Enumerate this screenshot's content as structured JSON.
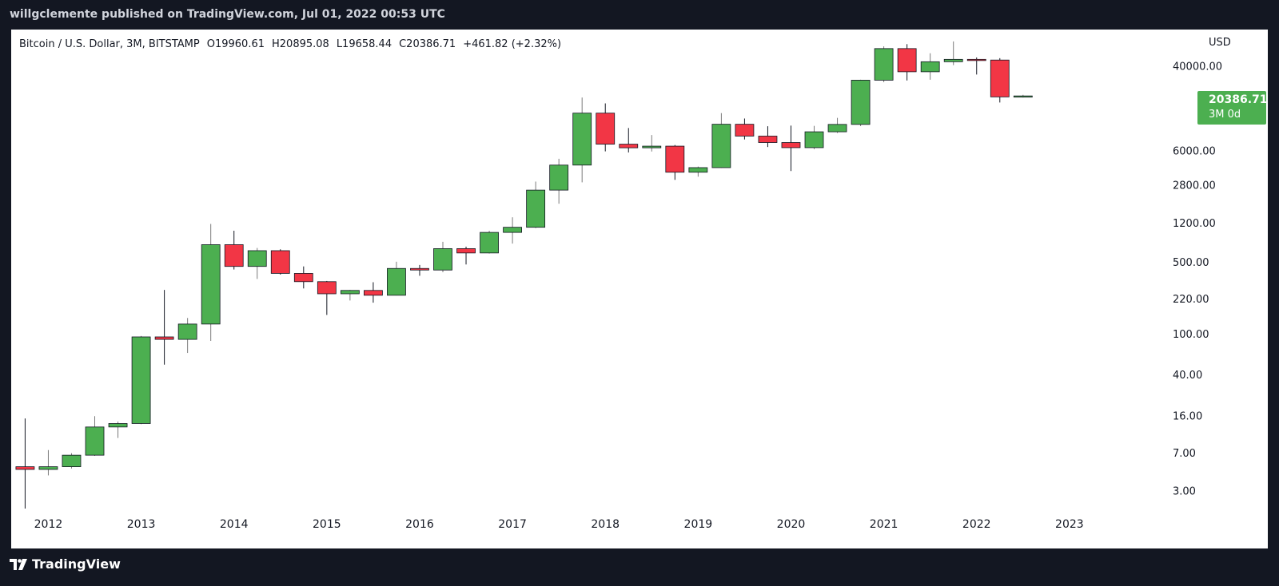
{
  "header": {
    "published_by": "willgclemente published on TradingView.com, Jul 01, 2022 00:53 UTC"
  },
  "legend": {
    "symbol": "Bitcoin / U.S. Dollar, 3M, BITSTAMP",
    "open": "O19960.61",
    "high": "H20895.08",
    "low": "L19658.44",
    "close": "C20386.71",
    "change": "+461.82 (+2.32%)"
  },
  "price_axis": {
    "currency": "USD",
    "current_price": "20386.71",
    "countdown": "3M 0d"
  },
  "footer": {
    "brand": "TradingView"
  },
  "colors": {
    "up": "#4caf50",
    "down": "#f23645",
    "background": "#131722",
    "chart_bg": "#ffffff",
    "text": "#131722",
    "header_text": "#d1d4dc"
  },
  "chart_data": {
    "type": "candlestick",
    "y_scale": "log",
    "ylim": [
      2,
      90000
    ],
    "y_ticks": [
      3,
      7,
      16,
      40,
      100,
      220,
      500,
      1200,
      2800,
      6000,
      40000
    ],
    "y_tick_labels": [
      "3.00",
      "7.00",
      "16.00",
      "40.00",
      "100.00",
      "220.00",
      "500.00",
      "1200.00",
      "2800.00",
      "6000.00",
      "40000.00"
    ],
    "x_ticks": [
      "2012",
      "2013",
      "2014",
      "2015",
      "2016",
      "2017",
      "2018",
      "2019",
      "2020",
      "2021",
      "2022",
      "2023"
    ],
    "x_tick_values": [
      2012.0,
      2013.0,
      2014.0,
      2015.0,
      2016.0,
      2017.0,
      2018.0,
      2019.0,
      2020.0,
      2021.0,
      2022.0,
      2023.0
    ],
    "xlim": [
      2011.6,
      2024.0
    ],
    "candles": [
      {
        "t": 2011.75,
        "o": 5.1,
        "h": 15.0,
        "l": 2.0,
        "c": 4.8
      },
      {
        "t": 2012.0,
        "o": 4.8,
        "h": 7.4,
        "l": 4.2,
        "c": 5.1
      },
      {
        "t": 2012.25,
        "o": 5.1,
        "h": 6.9,
        "l": 4.9,
        "c": 6.6
      },
      {
        "t": 2012.5,
        "o": 6.6,
        "h": 15.8,
        "l": 6.5,
        "c": 12.4
      },
      {
        "t": 2012.75,
        "o": 12.4,
        "h": 14.0,
        "l": 9.7,
        "c": 13.4
      },
      {
        "t": 2013.0,
        "o": 13.4,
        "h": 95.0,
        "l": 13.2,
        "c": 93.0
      },
      {
        "t": 2013.25,
        "o": 93.0,
        "h": 266.0,
        "l": 50.0,
        "c": 88.0
      },
      {
        "t": 2013.5,
        "o": 88.0,
        "h": 142.0,
        "l": 65.0,
        "c": 124.0
      },
      {
        "t": 2013.75,
        "o": 124.0,
        "h": 1163.0,
        "l": 85.0,
        "c": 732.0
      },
      {
        "t": 2014.0,
        "o": 732.0,
        "h": 1000.0,
        "l": 420.0,
        "c": 450.0
      },
      {
        "t": 2014.25,
        "o": 450.0,
        "h": 680.0,
        "l": 340.0,
        "c": 640.0
      },
      {
        "t": 2014.5,
        "o": 640.0,
        "h": 660.0,
        "l": 375.0,
        "c": 385.0
      },
      {
        "t": 2014.75,
        "o": 385.0,
        "h": 450.0,
        "l": 275.0,
        "c": 320.0
      },
      {
        "t": 2015.0,
        "o": 320.0,
        "h": 325.0,
        "l": 152.0,
        "c": 244.0
      },
      {
        "t": 2015.25,
        "o": 244.0,
        "h": 266.0,
        "l": 210.0,
        "c": 263.0
      },
      {
        "t": 2015.5,
        "o": 263.0,
        "h": 316.0,
        "l": 200.0,
        "c": 236.0
      },
      {
        "t": 2015.75,
        "o": 236.0,
        "h": 500.0,
        "l": 235.0,
        "c": 430.0
      },
      {
        "t": 2016.0,
        "o": 430.0,
        "h": 465.0,
        "l": 365.0,
        "c": 415.0
      },
      {
        "t": 2016.25,
        "o": 415.0,
        "h": 780.0,
        "l": 395.0,
        "c": 670.0
      },
      {
        "t": 2016.5,
        "o": 670.0,
        "h": 700.0,
        "l": 470.0,
        "c": 608.0
      },
      {
        "t": 2016.75,
        "o": 608.0,
        "h": 1000.0,
        "l": 600.0,
        "c": 963.0
      },
      {
        "t": 2017.0,
        "o": 963.0,
        "h": 1350.0,
        "l": 750.0,
        "c": 1080.0
      },
      {
        "t": 2017.25,
        "o": 1080.0,
        "h": 3000.0,
        "l": 1060.0,
        "c": 2480.0
      },
      {
        "t": 2017.5,
        "o": 2480.0,
        "h": 5000.0,
        "l": 1830.0,
        "c": 4340.0
      },
      {
        "t": 2017.75,
        "o": 4340.0,
        "h": 19666.0,
        "l": 2950.0,
        "c": 13880.0
      },
      {
        "t": 2018.0,
        "o": 13880.0,
        "h": 17250.0,
        "l": 5900.0,
        "c": 6930.0
      },
      {
        "t": 2018.25,
        "o": 6930.0,
        "h": 9950.0,
        "l": 5760.0,
        "c": 6390.0
      },
      {
        "t": 2018.5,
        "o": 6390.0,
        "h": 8500.0,
        "l": 5880.0,
        "c": 6630.0
      },
      {
        "t": 2018.75,
        "o": 6630.0,
        "h": 6800.0,
        "l": 3120.0,
        "c": 3700.0
      },
      {
        "t": 2019.0,
        "o": 3700.0,
        "h": 4200.0,
        "l": 3350.0,
        "c": 4100.0
      },
      {
        "t": 2019.25,
        "o": 4100.0,
        "h": 13880.0,
        "l": 4080.0,
        "c": 10820.0
      },
      {
        "t": 2019.5,
        "o": 10820.0,
        "h": 12300.0,
        "l": 7700.0,
        "c": 8300.0
      },
      {
        "t": 2019.75,
        "o": 8300.0,
        "h": 10350.0,
        "l": 6500.0,
        "c": 7190.0
      },
      {
        "t": 2020.0,
        "o": 7190.0,
        "h": 10500.0,
        "l": 3800.0,
        "c": 6410.0
      },
      {
        "t": 2020.25,
        "o": 6410.0,
        "h": 10430.0,
        "l": 6200.0,
        "c": 9140.0
      },
      {
        "t": 2020.5,
        "o": 9140.0,
        "h": 12480.0,
        "l": 8900.0,
        "c": 10780.0
      },
      {
        "t": 2020.75,
        "o": 10780.0,
        "h": 29300.0,
        "l": 10370.0,
        "c": 28990.0
      },
      {
        "t": 2021.0,
        "o": 28990.0,
        "h": 61800.0,
        "l": 27700.0,
        "c": 58800.0
      },
      {
        "t": 2021.25,
        "o": 58800.0,
        "h": 64900.0,
        "l": 28800.0,
        "c": 35000.0
      },
      {
        "t": 2021.5,
        "o": 35000.0,
        "h": 52950.0,
        "l": 29300.0,
        "c": 43800.0
      },
      {
        "t": 2021.75,
        "o": 43800.0,
        "h": 69000.0,
        "l": 40600.0,
        "c": 46200.0
      },
      {
        "t": 2022.0,
        "o": 46200.0,
        "h": 48200.0,
        "l": 32900.0,
        "c": 45500.0
      },
      {
        "t": 2022.25,
        "o": 45500.0,
        "h": 47450.0,
        "l": 17600.0,
        "c": 19950.0
      },
      {
        "t": 2022.5,
        "o": 19960.61,
        "h": 20895.08,
        "l": 19658.44,
        "c": 20386.71
      }
    ]
  }
}
